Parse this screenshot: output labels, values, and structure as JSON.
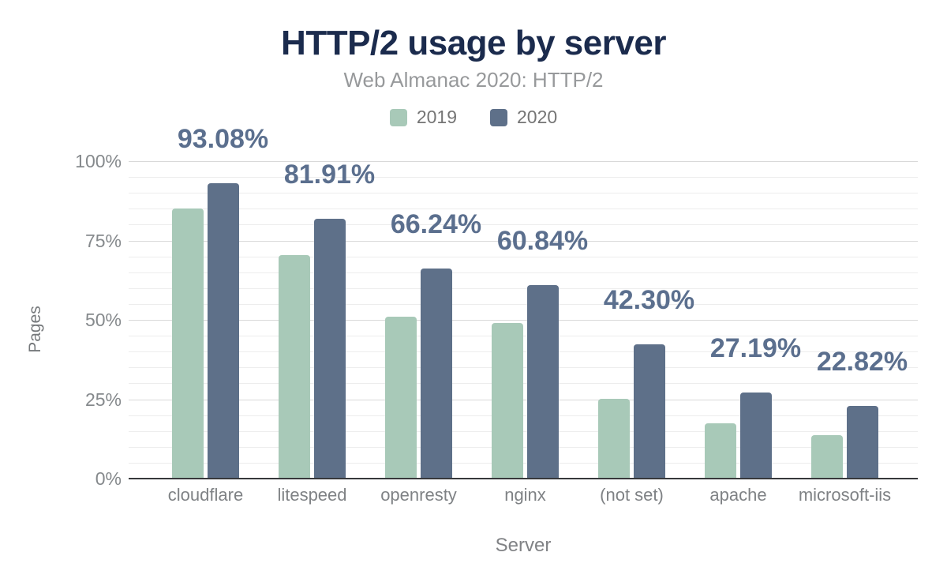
{
  "chart_data": {
    "type": "bar",
    "title": "HTTP/2 usage by server",
    "subtitle": "Web Almanac 2020: HTTP/2",
    "categories": [
      "cloudflare",
      "litespeed",
      "openresty",
      "nginx",
      "(not set)",
      "apache",
      "microsoft-iis"
    ],
    "series": [
      {
        "name": "2019",
        "color": "#a8c9b8",
        "values": [
          85.2,
          70.3,
          50.9,
          48.9,
          25.1,
          17.5,
          13.8
        ]
      },
      {
        "name": "2020",
        "color": "#5e7089",
        "values": [
          93.08,
          81.91,
          66.24,
          60.84,
          42.3,
          27.19,
          22.82
        ]
      }
    ],
    "data_labels": [
      "93.08%",
      "81.91%",
      "66.24%",
      "60.84%",
      "42.30%",
      "27.19%",
      "22.82%"
    ],
    "data_labels_on_series": "2020",
    "xlabel": "Server",
    "ylabel": "Pages",
    "ylim": [
      0,
      100
    ],
    "yticks": [
      0,
      25,
      50,
      75,
      100
    ],
    "ytick_labels": [
      "0%",
      "25%",
      "50%",
      "75%",
      "100%"
    ],
    "minor_grid_step_percent": 5,
    "major_grid_step_percent": 25,
    "grid": true,
    "legend_position": "top"
  },
  "colors": {
    "background": "#ffffff",
    "title_text": "#1b2b4d",
    "subtitle_text": "#97999b",
    "legend_text": "#757575",
    "axis_tick_text": "#85898c",
    "axis_title_text": "#75787b",
    "data_label_text": "#5b6f8e",
    "grid_minor": "#ededed",
    "grid_major": "#d9d9d9",
    "baseline": "#37383b",
    "series_2019": "#a8c9b8",
    "series_2020": "#5e7089"
  }
}
